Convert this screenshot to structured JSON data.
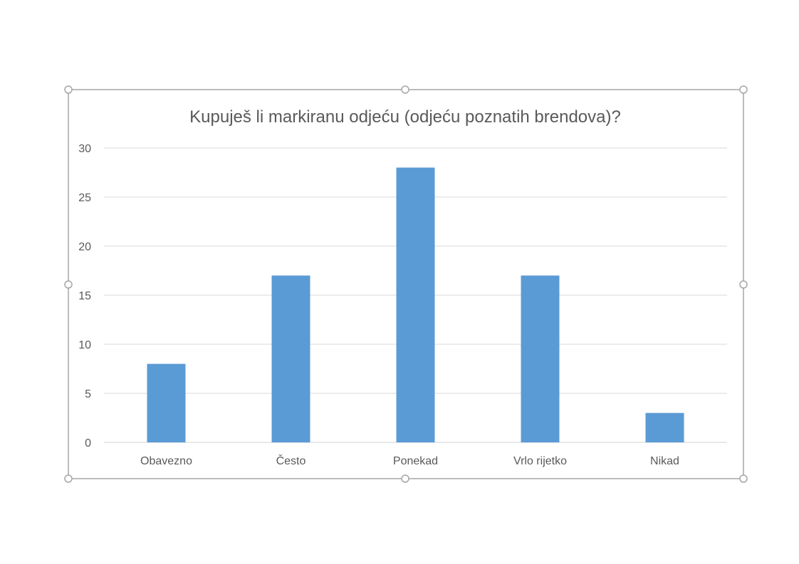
{
  "chart_data": {
    "type": "bar",
    "title": "Kupuješ li markiranu odjeću (odjeću poznatih brendova)?",
    "categories": [
      "Obavezno",
      "Često",
      "Ponekad",
      "Vrlo rijetko",
      "Nikad"
    ],
    "values": [
      8,
      17,
      28,
      17,
      3
    ],
    "xlabel": "",
    "ylabel": "",
    "ylim": [
      0,
      30
    ],
    "yticks": [
      "0",
      "5",
      "10",
      "15",
      "20",
      "25",
      "30"
    ],
    "grid": true,
    "legend": "none",
    "bar_color": "#5B9BD5",
    "selected": true
  }
}
